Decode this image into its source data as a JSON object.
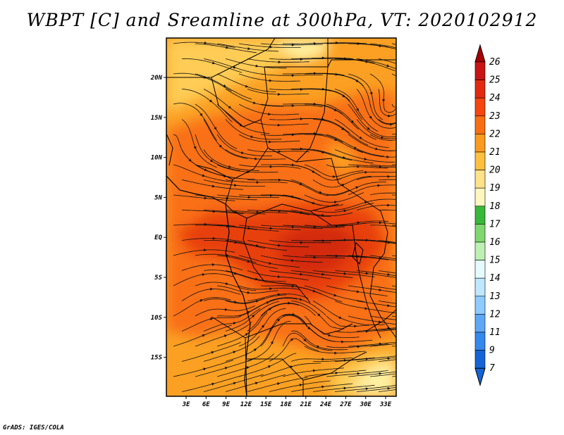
{
  "title": "WBPT [C] and Sreamline at 300hPa, VT: 2020102912",
  "footer": "GrADS: IGES/COLA",
  "colors": {
    "c19": "#fff0a0",
    "c20": "#ffcc55",
    "c21": "#fba023",
    "c22": "#f97014",
    "c23": "#e8400e",
    "c24": "#d32a0c"
  },
  "map_data": {
    "lon_labels": [
      "3E",
      "6E",
      "9E",
      "12E",
      "15E",
      "18E",
      "21E",
      "24E",
      "27E",
      "30E",
      "33E"
    ],
    "lat_labels": [
      "20N",
      "15N",
      "10N",
      "5N",
      "EQ",
      "5S",
      "10S",
      "15S"
    ]
  },
  "colorbar": {
    "labels": [
      "26",
      "25",
      "24",
      "23",
      "22",
      "21",
      "20",
      "19",
      "18",
      "17",
      "16",
      "15",
      "14",
      "13",
      "12",
      "11",
      "9",
      "7"
    ],
    "colors": [
      "#a80000",
      "#c81414",
      "#e32a10",
      "#f6450f",
      "#fa6e12",
      "#fb9a1e",
      "#ffbf3f",
      "#ffe28a",
      "#fff7c0",
      "#38b838",
      "#7fd86f",
      "#bdf1b4",
      "#e6fbff",
      "#bfe7ff",
      "#8fcbff",
      "#5fa8f5",
      "#3588ec",
      "#1464d8"
    ]
  }
}
